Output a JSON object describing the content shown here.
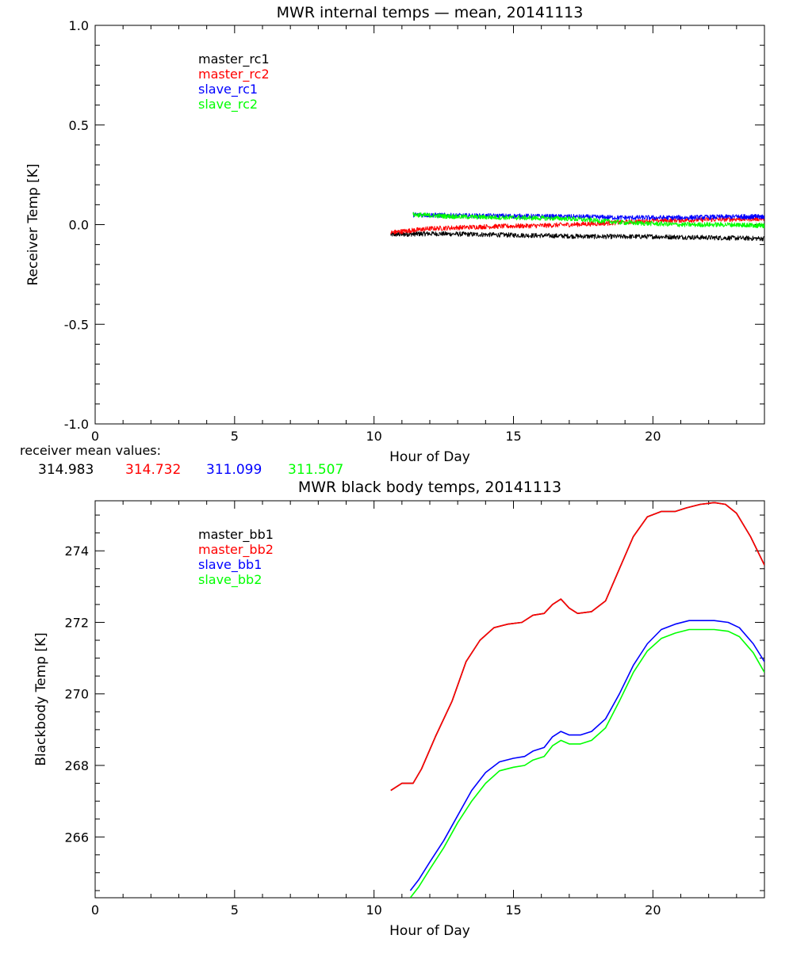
{
  "chart_data": [
    {
      "type": "line",
      "title": "MWR internal temps — mean, 20141113",
      "xlabel": "Hour of Day",
      "ylabel": "Receiver Temp [K]",
      "xlim": [
        0,
        24
      ],
      "ylim": [
        -1.0,
        1.0
      ],
      "xticks": [
        "0",
        "5",
        "10",
        "15",
        "20"
      ],
      "yticks": [
        "-1.0",
        "-0.5",
        "0.0",
        "0.5",
        "1.0"
      ],
      "grid": false,
      "legend_placement": "top-left",
      "series": [
        {
          "name": "master_rc1",
          "color": "#000000",
          "x": [
            10.6,
            12,
            14,
            16,
            18,
            20,
            22,
            24
          ],
          "y": [
            -0.05,
            -0.045,
            -0.05,
            -0.055,
            -0.06,
            -0.06,
            -0.065,
            -0.07
          ]
        },
        {
          "name": "master_rc2",
          "color": "#ff0000",
          "x": [
            10.6,
            12,
            14,
            16,
            18,
            20,
            22,
            24
          ],
          "y": [
            -0.04,
            -0.02,
            -0.01,
            -0.005,
            0.005,
            0.02,
            0.025,
            0.03
          ]
        },
        {
          "name": "slave_rc1",
          "color": "#0000ff",
          "x": [
            11.4,
            13,
            15,
            17,
            19,
            21,
            23,
            24
          ],
          "y": [
            0.05,
            0.045,
            0.043,
            0.04,
            0.035,
            0.035,
            0.04,
            0.04
          ]
        },
        {
          "name": "slave_rc2",
          "color": "#00ff00",
          "x": [
            11.4,
            13,
            15,
            17,
            19,
            21,
            23,
            24
          ],
          "y": [
            0.05,
            0.04,
            0.035,
            0.03,
            0.01,
            0.0,
            0.0,
            -0.005
          ]
        }
      ],
      "noise_amplitude": 0.012
    },
    {
      "type": "line",
      "title": "MWR black body temps, 20141113",
      "xlabel": "Hour of Day",
      "ylabel": "Blackbody Temp [K]",
      "xlim": [
        0,
        24
      ],
      "ylim": [
        264.3,
        275.4
      ],
      "xticks": [
        "0",
        "5",
        "10",
        "15",
        "20"
      ],
      "yticks": [
        "266",
        "268",
        "270",
        "272",
        "274"
      ],
      "grid": false,
      "legend_placement": "top-left",
      "series": [
        {
          "name": "master_bb1",
          "color": "#000000",
          "x": [
            10.6,
            11.0,
            11.4,
            11.7,
            12.2,
            12.8,
            13.3,
            13.8,
            14.3,
            14.8,
            15.3,
            15.7,
            16.1,
            16.4,
            16.7,
            17.0,
            17.3,
            17.8,
            18.3,
            18.8,
            19.3,
            19.8,
            20.3,
            20.8,
            21.2,
            21.7,
            22.2,
            22.6,
            23.0,
            23.5,
            24.0
          ],
          "y": [
            267.3,
            267.5,
            267.5,
            267.9,
            268.8,
            269.8,
            270.9,
            271.5,
            271.85,
            271.95,
            272.0,
            272.2,
            272.25,
            272.5,
            272.65,
            272.4,
            272.25,
            272.3,
            272.6,
            273.5,
            274.4,
            274.95,
            275.1,
            275.1,
            275.2,
            275.3,
            275.35,
            275.3,
            275.05,
            274.4,
            273.6
          ]
        },
        {
          "name": "master_bb2",
          "color": "#ff0000",
          "x": [
            10.6,
            11.0,
            11.4,
            11.7,
            12.2,
            12.8,
            13.3,
            13.8,
            14.3,
            14.8,
            15.3,
            15.7,
            16.1,
            16.4,
            16.7,
            17.0,
            17.3,
            17.8,
            18.3,
            18.8,
            19.3,
            19.8,
            20.3,
            20.8,
            21.2,
            21.7,
            22.2,
            22.6,
            23.0,
            23.5,
            24.0
          ],
          "y": [
            267.3,
            267.5,
            267.5,
            267.9,
            268.8,
            269.8,
            270.9,
            271.5,
            271.85,
            271.95,
            272.0,
            272.2,
            272.25,
            272.5,
            272.65,
            272.4,
            272.25,
            272.3,
            272.6,
            273.5,
            274.4,
            274.95,
            275.1,
            275.1,
            275.2,
            275.3,
            275.35,
            275.3,
            275.05,
            274.4,
            273.6
          ]
        },
        {
          "name": "slave_bb1",
          "color": "#0000ff",
          "x": [
            11.3,
            11.6,
            12.0,
            12.5,
            13.0,
            13.5,
            14.0,
            14.5,
            15.0,
            15.4,
            15.7,
            16.1,
            16.4,
            16.7,
            17.0,
            17.4,
            17.8,
            18.3,
            18.8,
            19.3,
            19.8,
            20.3,
            20.8,
            21.3,
            21.7,
            22.2,
            22.7,
            23.1,
            23.6,
            24.0
          ],
          "y": [
            264.5,
            264.8,
            265.3,
            265.9,
            266.6,
            267.3,
            267.8,
            268.1,
            268.2,
            268.25,
            268.4,
            268.5,
            268.8,
            268.95,
            268.85,
            268.85,
            268.95,
            269.3,
            270.0,
            270.8,
            271.4,
            271.8,
            271.95,
            272.05,
            272.05,
            272.05,
            272.0,
            271.85,
            271.4,
            270.9
          ]
        },
        {
          "name": "slave_bb2",
          "color": "#00ff00",
          "x": [
            11.3,
            11.6,
            12.0,
            12.5,
            13.0,
            13.5,
            14.0,
            14.5,
            15.0,
            15.4,
            15.7,
            16.1,
            16.4,
            16.7,
            17.0,
            17.4,
            17.8,
            18.3,
            18.8,
            19.3,
            19.8,
            20.3,
            20.8,
            21.3,
            21.7,
            22.2,
            22.7,
            23.1,
            23.6,
            24.0
          ],
          "y": [
            264.3,
            264.6,
            265.1,
            265.7,
            266.4,
            267.0,
            267.5,
            267.85,
            267.95,
            268.0,
            268.15,
            268.25,
            268.55,
            268.7,
            268.6,
            268.6,
            268.7,
            269.05,
            269.8,
            270.6,
            271.2,
            271.55,
            271.7,
            271.8,
            271.8,
            271.8,
            271.75,
            271.6,
            271.15,
            270.6
          ]
        }
      ]
    }
  ],
  "mean_values": {
    "label": "receiver mean values:",
    "values": [
      {
        "text": "314.983",
        "color": "#000000"
      },
      {
        "text": "314.732",
        "color": "#ff0000"
      },
      {
        "text": "311.099",
        "color": "#0000ff"
      },
      {
        "text": "311.507",
        "color": "#00ff00"
      }
    ]
  }
}
